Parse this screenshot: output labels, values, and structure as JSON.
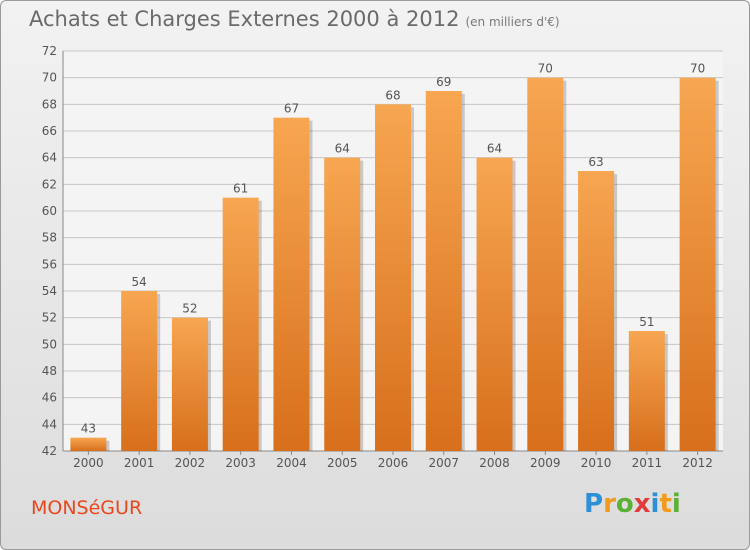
{
  "header": {
    "title": "Achats et Charges Externes 2000 à 2012",
    "unit": "(en milliers d'€)"
  },
  "footer": {
    "commune": "MONSéGUR",
    "brand_letters": [
      {
        "ch": "P",
        "color": "#2d8fd5"
      },
      {
        "ch": "r",
        "color": "#f29a1d"
      },
      {
        "ch": "o",
        "color": "#5cb133"
      },
      {
        "ch": "x",
        "color": "#e23b3b"
      },
      {
        "ch": "i",
        "color": "#2d8fd5"
      },
      {
        "ch": "t",
        "color": "#f29a1d"
      },
      {
        "ch": "i",
        "color": "#5cb133"
      }
    ]
  },
  "colors": {
    "bar_top": "#f7a651",
    "bar_bottom": "#d76f1c",
    "grid": "#c7c7c7",
    "plot_bg": "#f4f4f4"
  },
  "chart_data": {
    "type": "bar",
    "title": "Achats et Charges Externes 2000 à 2012",
    "categories": [
      "2000",
      "2001",
      "2002",
      "2003",
      "2004",
      "2005",
      "2006",
      "2007",
      "2008",
      "2009",
      "2010",
      "2011",
      "2012"
    ],
    "values": [
      43,
      54,
      52,
      61,
      67,
      64,
      68,
      69,
      64,
      70,
      63,
      51,
      70
    ],
    "ylim": [
      42,
      72
    ],
    "yticks": [
      42,
      44,
      46,
      48,
      50,
      52,
      54,
      56,
      58,
      60,
      62,
      64,
      66,
      68,
      70,
      72
    ],
    "grid": true
  }
}
